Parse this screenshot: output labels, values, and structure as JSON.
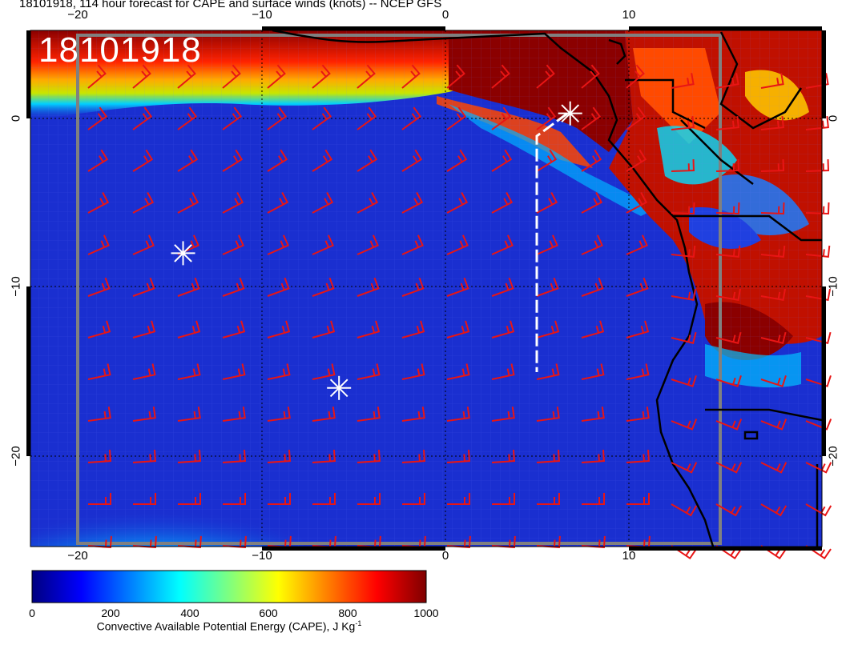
{
  "title": "18101918, 114 hour forecast for CAPE and surface winds (knots) -- NCEP GFS",
  "stamp": "18101918",
  "axes": {
    "top_ticks": [
      "−20",
      "−10",
      "0",
      "10"
    ],
    "bottom_ticks": [
      "−20",
      "−10",
      "0",
      "10"
    ],
    "left_ticks": [
      "0",
      "−10",
      "−20"
    ],
    "right_ticks": [
      "0",
      "−10",
      "−20"
    ]
  },
  "colorbar": {
    "title": "Convective Available Potential Energy (CAPE), J Kg",
    "unit_superscript": "-1",
    "ticks": [
      "0",
      "200",
      "400",
      "600",
      "800",
      "1000"
    ],
    "colors": [
      "#00007f",
      "#0000ff",
      "#007fff",
      "#00ffff",
      "#7fff7f",
      "#ffff00",
      "#ff7f00",
      "#ff0000",
      "#7f0000"
    ]
  },
  "markers": [
    {
      "name": "star-marker",
      "lon": -14.3,
      "lat": -8.0
    },
    {
      "name": "star-marker",
      "lon": -5.8,
      "lat": -16.0
    },
    {
      "name": "star-marker",
      "lon": 6.8,
      "lat": 0.3
    }
  ],
  "wind_barb_color": "#e81515",
  "coastline_color": "#000000",
  "track_color": "#ffffff"
}
